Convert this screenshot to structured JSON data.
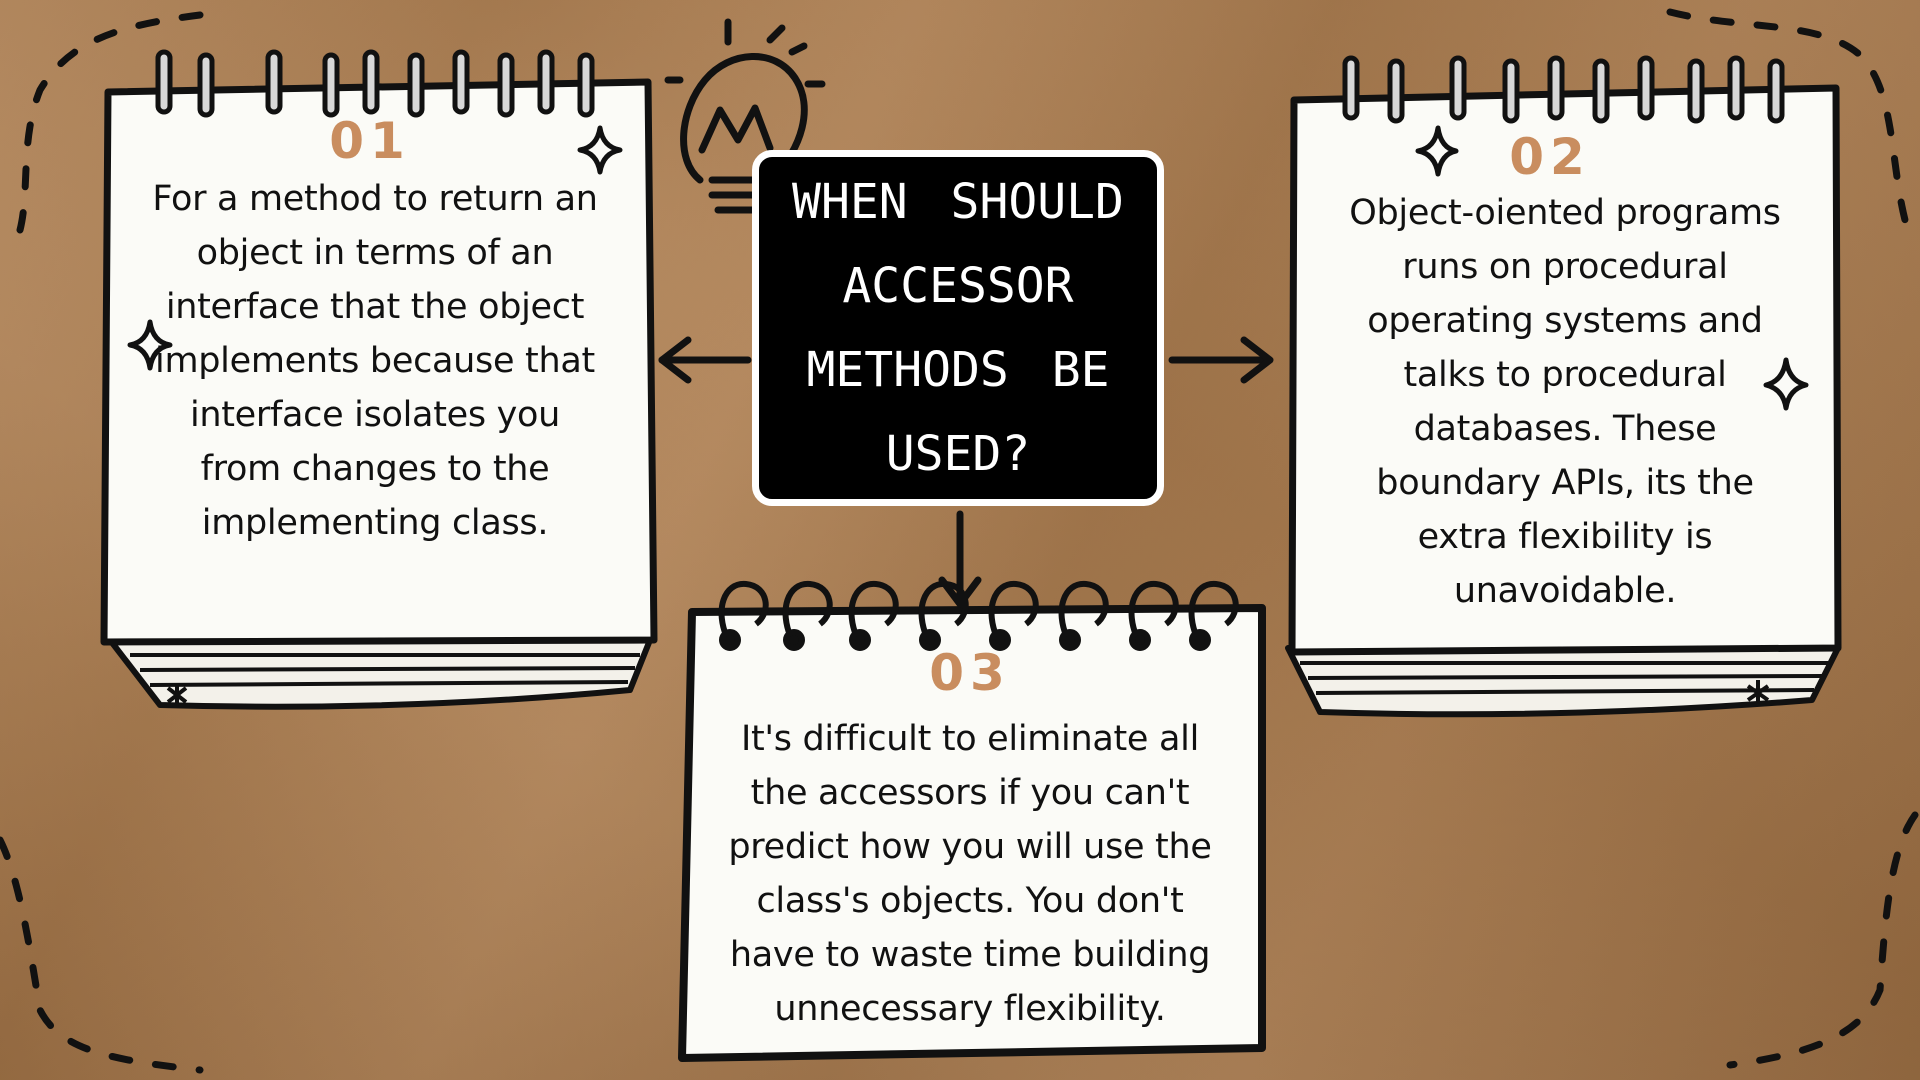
{
  "title": "WHEN SHOULD\nACCESSOR\nMETHODS BE\nUSED?",
  "notes": [
    {
      "number": "01",
      "text": "For a method to return an object in terms of an interface that the object implements because that interface isolates you from changes to the implementing class."
    },
    {
      "number": "02",
      "text": "Object-oiented programs runs on procedural operating systems and talks to procedural databases. These boundary APIs, its the extra flexibility is unavoidable."
    },
    {
      "number": "03",
      "text": "It's difficult to eliminate all the accessors if you can't predict how you will use the class's objects. You don't have to waste time building unnecessary flexibility."
    }
  ],
  "colors": {
    "background": "#a97a4c",
    "number_accent": "#c98d5f",
    "title_box": "#000000",
    "paper": "#fbfbf7"
  },
  "icons": [
    "lightbulb-icon",
    "sparkle-icon",
    "arrow-icon",
    "dashed-border"
  ]
}
